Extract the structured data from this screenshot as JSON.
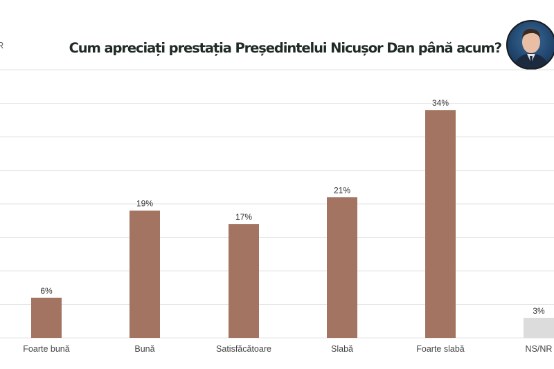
{
  "corner_fragment": "R",
  "chart_data": {
    "type": "bar",
    "title": "Cum apreciați prestația Președintelui Nicușor Dan până acum?",
    "categories": [
      "Foarte bună",
      "Bună",
      "Satisfăcătoare",
      "Slabă",
      "Foarte slabă",
      "NS/NR"
    ],
    "values": [
      6,
      19,
      17,
      21,
      34,
      3
    ],
    "data_labels": [
      "6%",
      "19%",
      "17%",
      "21%",
      "34%",
      "3%"
    ],
    "ylim": [
      0,
      40
    ],
    "grid_step": 5,
    "grid": true,
    "xlabel": "",
    "ylabel": "",
    "colors": {
      "bar": "#a47462",
      "ns_nr_bar": "#dcdcdc",
      "grid": "#e3e3e3",
      "title": "#1f2b24"
    }
  }
}
